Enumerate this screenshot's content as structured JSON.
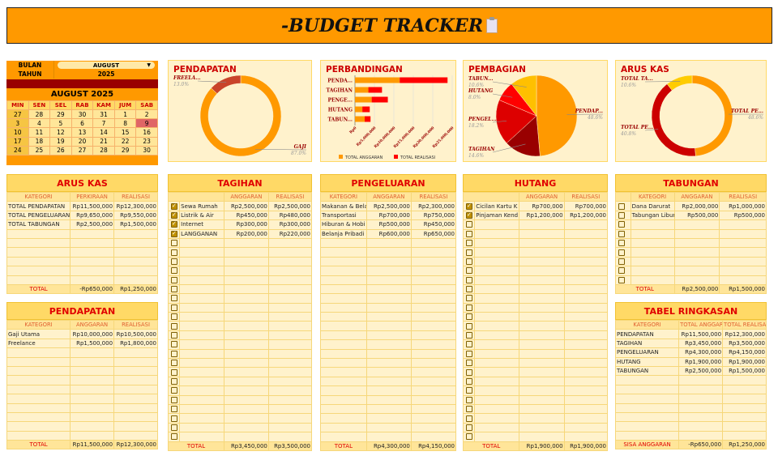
{
  "title": "-BUDGET TRACKER",
  "calendar": {
    "month_label": "BULAN",
    "month_value": "AUGUST",
    "year_label": "TAHUN",
    "year_value": "2025",
    "heading": "AUGUST 2025",
    "today": "9",
    "days": [
      "MIN",
      "SEN",
      "SEL",
      "RAB",
      "KAM",
      "JUM",
      "SAB"
    ],
    "weeks": [
      [
        "27",
        "28",
        "29",
        "30",
        "31",
        "1",
        "2"
      ],
      [
        "3",
        "4",
        "5",
        "6",
        "7",
        "8",
        "9"
      ],
      [
        "10",
        "11",
        "12",
        "13",
        "14",
        "15",
        "16"
      ],
      [
        "17",
        "18",
        "19",
        "20",
        "21",
        "22",
        "23"
      ],
      [
        "24",
        "25",
        "26",
        "27",
        "28",
        "29",
        "30"
      ]
    ]
  },
  "colors": {
    "orange": "#FF9900",
    "freelance": "#C9442A",
    "dark_red": "#990000",
    "red": "#DD0000",
    "bright_red": "#FF0000",
    "gold": "#FFC000",
    "yellow": "#FFCC00",
    "cashout": "#CC0000"
  },
  "chart_data": [
    {
      "type": "pie",
      "donut": true,
      "title": "PENDAPATAN",
      "slices": [
        {
          "label": "GAJI",
          "pct_label": "87.0%",
          "value": 87.0
        },
        {
          "label": "FREELA...",
          "pct_label": "13.0%",
          "value": 13.0
        }
      ]
    },
    {
      "type": "bar",
      "orientation": "horizontal",
      "stacked": true,
      "title": "PERBANDINGAN",
      "categories": [
        "PENDA...",
        "TAGIHAN",
        "PENGE...",
        "HUTANG",
        "TABUN..."
      ],
      "series": [
        {
          "name": "TOTAL ANGGARAN",
          "values": [
            11500000,
            3450000,
            4300000,
            1900000,
            2500000
          ]
        },
        {
          "name": "TOTAL REALISASI",
          "values": [
            12300000,
            3500000,
            4150000,
            1900000,
            1500000
          ]
        }
      ],
      "xlim": [
        0,
        25000000
      ],
      "xticks": [
        "Rp0",
        "Rp5,000,000",
        "Rp10,000,000",
        "Rp15,000,000",
        "Rp20,000,000",
        "Rp25,000,000"
      ],
      "grid": true,
      "legend": "bottom"
    },
    {
      "type": "pie",
      "title": "PEMBAGIAN",
      "slices": [
        {
          "label": "PENDAP...",
          "pct_label": "48.6%",
          "value": 48.6
        },
        {
          "label": "TAGIHAN",
          "pct_label": "14.6%",
          "value": 14.6
        },
        {
          "label": "PENGEL...",
          "pct_label": "18.2%",
          "value": 18.2
        },
        {
          "label": "HUTANG",
          "pct_label": "8.0%",
          "value": 8.0
        },
        {
          "label": "TABUN...",
          "pct_label": "10.6%",
          "value": 10.6
        }
      ]
    },
    {
      "type": "pie",
      "donut": true,
      "title": "ARUS KAS",
      "slices": [
        {
          "label": "TOTAL PE...",
          "pct_label": "48.6%",
          "value": 48.6
        },
        {
          "label": "TOTAL PE...",
          "pct_label": "40.8%",
          "value": 40.8
        },
        {
          "label": "TOTAL TA...",
          "pct_label": "10.6%",
          "value": 10.6
        }
      ]
    }
  ],
  "tables": {
    "arus_kas": {
      "title": "ARUS KAS",
      "columns": [
        "KATEGORI",
        "PERKIRAAN",
        "REALISASI"
      ],
      "rows": [
        [
          "TOTAL PENDAPATAN",
          "Rp11,500,000",
          "Rp12,300,000"
        ],
        [
          "TOTAL PENGELUARAN",
          "Rp9,650,000",
          "Rp9,550,000"
        ],
        [
          "TOTAL TABUNGAN",
          "Rp2,500,000",
          "Rp1,500,000"
        ]
      ],
      "total": [
        "TOTAL",
        "-Rp650,000",
        "Rp1,250,000"
      ]
    },
    "pendapatan": {
      "title": "PENDAPATAN",
      "columns": [
        "KATEGORI",
        "ANGGARAN",
        "REALISASI"
      ],
      "rows": [
        [
          "Gaji Utama",
          "Rp10,000,000",
          "Rp10,500,000"
        ],
        [
          "Freelance",
          "Rp1,500,000",
          "Rp1,800,000"
        ]
      ],
      "total": [
        "TOTAL",
        "Rp11,500,000",
        "Rp12,300,000"
      ]
    },
    "tagihan": {
      "title": "TAGIHAN",
      "columns": [
        "",
        "ANGGARAN",
        "REALISASI"
      ],
      "checked": [
        true,
        true,
        true,
        true
      ],
      "rows": [
        [
          "Sewa Rumah",
          "Rp2,500,000",
          "Rp2,500,000"
        ],
        [
          "Listrik & Air",
          "Rp450,000",
          "Rp480,000"
        ],
        [
          "Internet",
          "Rp300,000",
          "Rp300,000"
        ],
        [
          "LANGGANAN",
          "Rp200,000",
          "Rp220,000"
        ]
      ],
      "total": [
        "TOTAL",
        "Rp3,450,000",
        "Rp3,500,000"
      ]
    },
    "pengeluaran": {
      "title": "PENGELUARAN",
      "columns": [
        "KATEGORI",
        "ANGGARAN",
        "REALISASI"
      ],
      "rows": [
        [
          "Makanan & Bela",
          "Rp2,500,000",
          "Rp2,300,000"
        ],
        [
          "Transportasi",
          "Rp700,000",
          "Rp750,000"
        ],
        [
          "Hiburan & Hobi",
          "Rp500,000",
          "Rp450,000"
        ],
        [
          "Belanja Pribadi",
          "Rp600,000",
          "Rp650,000"
        ]
      ],
      "total": [
        "TOTAL",
        "Rp4,300,000",
        "Rp4,150,000"
      ]
    },
    "hutang": {
      "title": "HUTANG",
      "columns": [
        "",
        "ANGGARAN",
        "REALISASI"
      ],
      "checked": [
        true,
        true
      ],
      "rows": [
        [
          "Cicilan Kartu K",
          "Rp700,000",
          "Rp700,000"
        ],
        [
          "Pinjaman Kend",
          "Rp1,200,000",
          "Rp1,200,000"
        ]
      ],
      "total": [
        "TOTAL",
        "Rp1,900,000",
        "Rp1,900,000"
      ]
    },
    "tabungan": {
      "title": "TABUNGAN",
      "columns": [
        "KATEGORI",
        "ANGGARAN",
        "REALISASI"
      ],
      "checked": [
        false,
        false
      ],
      "rows": [
        [
          "Dana Darurat",
          "Rp2,000,000",
          "Rp1,000,000"
        ],
        [
          "Tabungan Libur",
          "Rp500,000",
          "Rp500,000"
        ]
      ],
      "total": [
        "TOTAL",
        "Rp2,500,000",
        "Rp1,500,000"
      ]
    },
    "ringkasan": {
      "title": "TABEL RINGKASAN",
      "columns": [
        "KATEGORI",
        "TOTAL ANGGARAN",
        "TOTAL REALISASI"
      ],
      "rows": [
        [
          "PENDAPATAN",
          "Rp11,500,000",
          "Rp12,300,000"
        ],
        [
          "TAGIHAN",
          "Rp3,450,000",
          "Rp3,500,000"
        ],
        [
          "PENGELUARAN",
          "Rp4,300,000",
          "Rp4,150,000"
        ],
        [
          "HUTANG",
          "Rp1,900,000",
          "Rp1,900,000"
        ],
        [
          "TABUNGAN",
          "Rp2,500,000",
          "Rp1,500,000"
        ]
      ],
      "total": [
        "SISA ANGGARAN",
        "-Rp650,000",
        "Rp1,250,000"
      ]
    }
  }
}
